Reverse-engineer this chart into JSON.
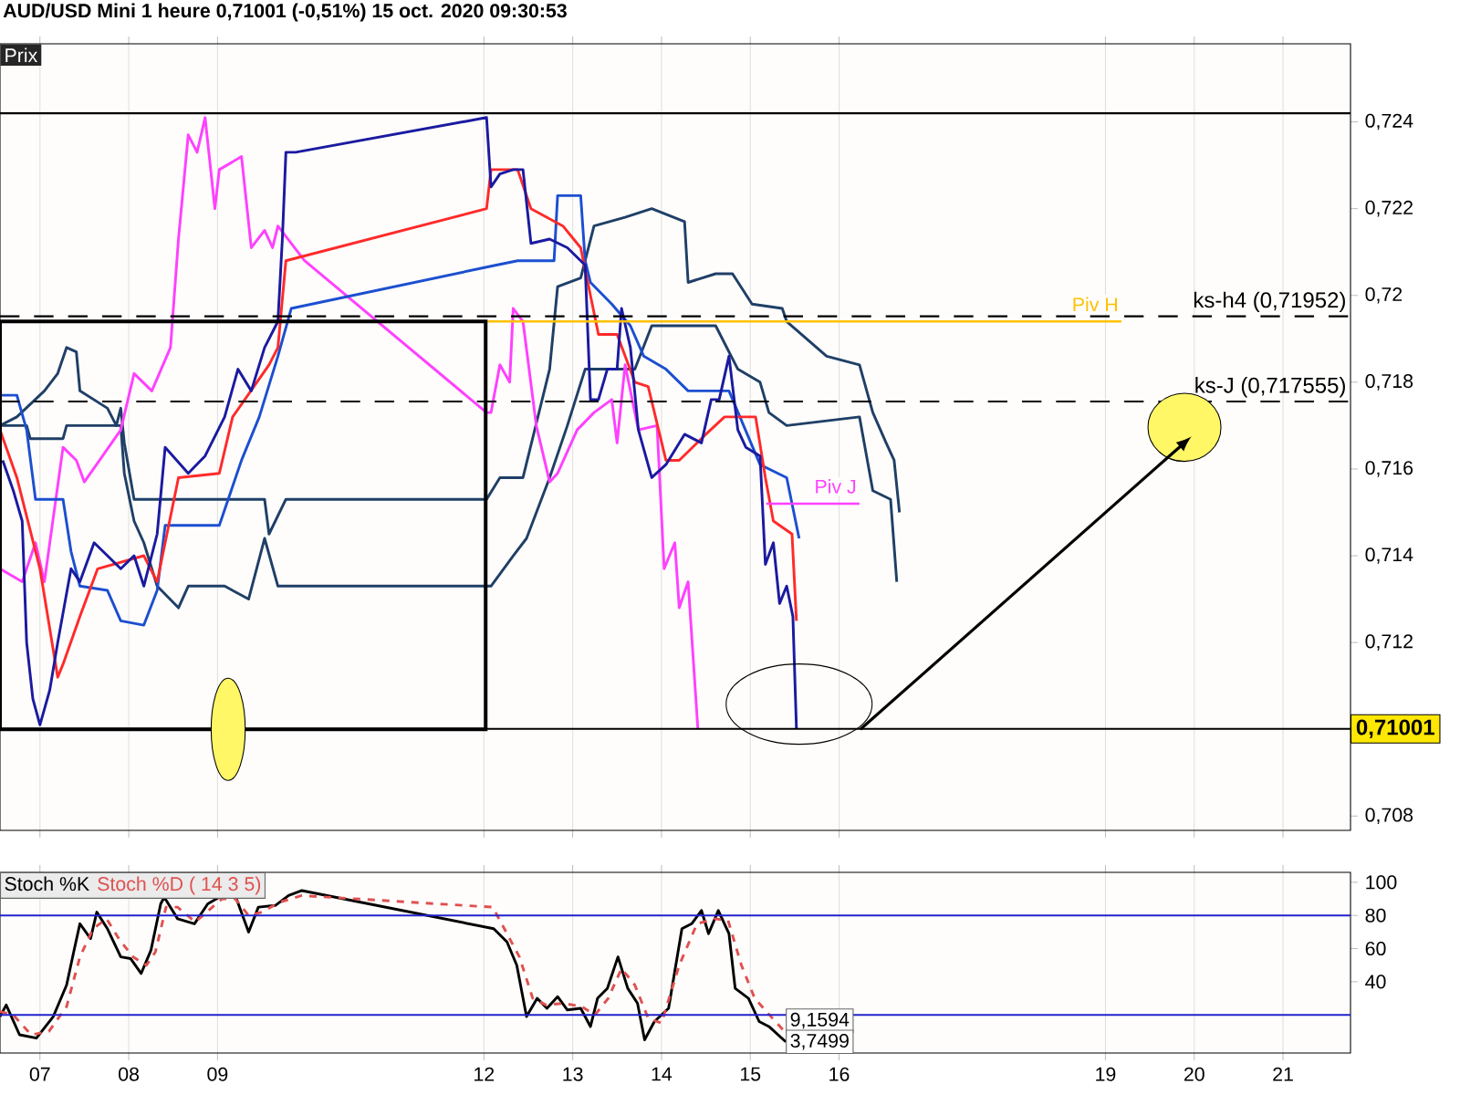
{
  "chart_data": [
    {
      "type": "line",
      "title": "AUD/USD Mini   1 heure   0,71001 (-0,51%)   15 oct. 2020 09:30:53",
      "annotations": [
        "Prix"
      ],
      "xlim": [
        6.55,
        21.76
      ],
      "xticks": [
        7,
        8,
        9,
        12,
        13,
        14,
        15,
        16,
        19,
        20,
        21
      ],
      "ylim": [
        0.70767,
        0.7258
      ],
      "yticks": [
        {
          "value": 0.708,
          "label": "0,708"
        },
        {
          "value": 0.71,
          "label": null
        },
        {
          "value": 0.712,
          "label": "0,712"
        },
        {
          "value": 0.714,
          "label": "0,714"
        },
        {
          "value": 0.716,
          "label": "0,716"
        },
        {
          "value": 0.718,
          "label": "0,718"
        },
        {
          "value": 0.72,
          "label": "0,72"
        },
        {
          "value": 0.722,
          "label": "0,722"
        },
        {
          "value": 0.724,
          "label": "0,724"
        }
      ],
      "tick_labels": "y",
      "grid": "x",
      "marker": "none",
      "line_style": "solid",
      "series": [
        {
          "color": "#1f3f66",
          "x": [
            6.55,
            6.74,
            7.05,
            7.2,
            7.3,
            7.41,
            7.45,
            7.76,
            7.86,
            7.91,
            7.95,
            8.06,
            9.53,
            9.58,
            9.77,
            12.03,
            12.18,
            12.44,
            12.74,
            12.83,
            13.09,
            13.24,
            13.59,
            13.89,
            14.26,
            14.3,
            14.61,
            14.8,
            15.02,
            15.36,
            15.41,
            15.86,
            16.23,
            16.38,
            16.53,
            16.62,
            16.68
          ],
          "values": [
            0.717,
            0.7172,
            0.7178,
            0.7182,
            0.7188,
            0.7187,
            0.7178,
            0.7174,
            0.717,
            0.7174,
            0.7166,
            0.7153,
            0.7153,
            0.7145,
            0.7153,
            0.7153,
            0.7158,
            0.7158,
            0.7183,
            0.7202,
            0.7204,
            0.7216,
            0.7218,
            0.722,
            0.7217,
            0.7203,
            0.7205,
            0.7205,
            0.7198,
            0.7197,
            0.7194,
            0.7186,
            0.7184,
            0.7173,
            0.7166,
            0.7162,
            0.715
          ]
        },
        {
          "color": "#1f3f66",
          "x": [
            6.55,
            6.85,
            6.89,
            7.26,
            7.3,
            7.91,
            7.95,
            8.06,
            8.17,
            8.32,
            8.56,
            8.67,
            9.08,
            9.35,
            9.53,
            9.68,
            12.08,
            12.33,
            12.48,
            12.74,
            12.94,
            13.14,
            13.7,
            13.89,
            14.61,
            14.86,
            15.11,
            15.21,
            15.41,
            16.23,
            16.38,
            16.58,
            16.65
          ],
          "values": [
            0.717,
            0.717,
            0.7167,
            0.7167,
            0.717,
            0.717,
            0.7159,
            0.7148,
            0.7143,
            0.7133,
            0.7128,
            0.7133,
            0.7133,
            0.713,
            0.7144,
            0.7133,
            0.7133,
            0.714,
            0.7144,
            0.7158,
            0.717,
            0.7183,
            0.7183,
            0.7193,
            0.7193,
            0.7183,
            0.718,
            0.7173,
            0.717,
            0.7172,
            0.7155,
            0.7153,
            0.7134
          ]
        },
        {
          "color": "#ff40ff",
          "x": [
            6.55,
            6.8,
            6.95,
            7.05,
            7.26,
            7.41,
            7.5,
            7.91,
            8.06,
            8.26,
            8.47,
            8.56,
            8.67,
            8.77,
            8.86,
            8.97,
            9.02,
            9.27,
            9.38,
            9.53,
            9.62,
            9.68,
            9.98,
            12.03,
            12.08,
            12.18,
            12.29,
            12.33,
            12.44,
            12.59,
            12.74,
            12.83,
            13.05,
            13.24,
            13.44,
            13.5,
            13.59,
            13.74,
            13.95,
            14.03,
            14.15,
            14.2,
            14.3,
            14.41
          ],
          "values": [
            0.7137,
            0.7134,
            0.7143,
            0.7134,
            0.7165,
            0.7162,
            0.7157,
            0.7169,
            0.7182,
            0.7178,
            0.7188,
            0.7213,
            0.7237,
            0.7233,
            0.7241,
            0.722,
            0.7229,
            0.7232,
            0.7211,
            0.7215,
            0.7211,
            0.7216,
            0.7208,
            0.7173,
            0.7173,
            0.7184,
            0.718,
            0.7197,
            0.7194,
            0.717,
            0.7157,
            0.7159,
            0.7169,
            0.7173,
            0.7176,
            0.7166,
            0.7184,
            0.7169,
            0.717,
            0.7137,
            0.7143,
            0.7128,
            0.7134,
            0.71
          ]
        },
        {
          "color": "#1c4fd0",
          "x": [
            6.55,
            6.74,
            6.85,
            6.95,
            7.26,
            7.35,
            7.45,
            7.76,
            7.91,
            8.17,
            8.32,
            8.41,
            9.02,
            9.27,
            9.47,
            9.68,
            9.83,
            12.14,
            12.38,
            12.79,
            12.83,
            13.09,
            13.14,
            13.2,
            13.44,
            13.65,
            13.8,
            14.05,
            14.3,
            14.76,
            15.11,
            15.41,
            15.55
          ],
          "values": [
            0.7177,
            0.7177,
            0.7169,
            0.7153,
            0.7153,
            0.7141,
            0.7133,
            0.7132,
            0.7125,
            0.7124,
            0.7132,
            0.7147,
            0.7147,
            0.7162,
            0.7172,
            0.7186,
            0.7197,
            0.7207,
            0.7208,
            0.7208,
            0.7223,
            0.7223,
            0.7208,
            0.7203,
            0.7198,
            0.7193,
            0.7186,
            0.7183,
            0.7178,
            0.7178,
            0.7161,
            0.7158,
            0.7144
          ]
        },
        {
          "color": "#ff2a2a",
          "x": [
            6.55,
            6.74,
            7,
            7.2,
            7.26,
            7.45,
            7.65,
            8.17,
            8.32,
            8.56,
            9.02,
            9.17,
            9.58,
            9.68,
            9.77,
            12.03,
            12.08,
            12.38,
            12.53,
            12.89,
            13.09,
            13.2,
            13.29,
            13.5,
            13.7,
            13.85,
            14.05,
            14.2,
            14.5,
            14.71,
            15.06,
            15.17,
            15.26,
            15.47,
            15.52
          ],
          "values": [
            0.7169,
            0.7158,
            0.7137,
            0.7112,
            0.7115,
            0.7126,
            0.7137,
            0.714,
            0.7134,
            0.7158,
            0.7159,
            0.7172,
            0.7184,
            0.7188,
            0.7208,
            0.722,
            0.7229,
            0.7229,
            0.722,
            0.7216,
            0.7211,
            0.72,
            0.7191,
            0.7191,
            0.718,
            0.7179,
            0.7162,
            0.7162,
            0.7168,
            0.7172,
            0.7172,
            0.7158,
            0.7148,
            0.7145,
            0.7125
          ]
        },
        {
          "color": "#1a1aa0",
          "x": [
            6.58,
            6.7,
            6.8,
            6.85,
            6.92,
            7,
            7.11,
            7.2,
            7.35,
            7.45,
            7.61,
            7.76,
            7.91,
            8.06,
            8.17,
            8.32,
            8.41,
            8.67,
            8.86,
            9.08,
            9.23,
            9.38,
            9.53,
            9.68,
            9.73,
            9.77,
            9.88,
            12.03,
            12.08,
            12.18,
            12.33,
            12.44,
            12.53,
            12.74,
            12.94,
            13.14,
            13.2,
            13.29,
            13.39,
            13.5,
            13.55,
            13.65,
            13.74,
            13.89,
            14.05,
            14.26,
            14.45,
            14.56,
            14.65,
            14.76,
            14.86,
            14.95,
            15.11,
            15.17,
            15.26,
            15.33,
            15.41,
            15.48,
            15.52
          ],
          "values": [
            0.7162,
            0.7155,
            0.7148,
            0.712,
            0.7107,
            0.7101,
            0.7109,
            0.712,
            0.7137,
            0.7134,
            0.7143,
            0.714,
            0.7137,
            0.714,
            0.7133,
            0.7145,
            0.7165,
            0.7159,
            0.7163,
            0.7172,
            0.7183,
            0.7178,
            0.7188,
            0.7194,
            0.7213,
            0.7233,
            0.7233,
            0.7241,
            0.7225,
            0.7228,
            0.7229,
            0.7229,
            0.7212,
            0.7213,
            0.7211,
            0.7207,
            0.7176,
            0.7176,
            0.7183,
            0.7183,
            0.7197,
            0.7188,
            0.7169,
            0.7158,
            0.7161,
            0.7168,
            0.7166,
            0.7176,
            0.7176,
            0.7186,
            0.7169,
            0.7165,
            0.7163,
            0.7138,
            0.7143,
            0.7129,
            0.7133,
            0.7126,
            0.71001
          ]
        },
        {
          "name": "Piv H",
          "color": "#ffc000",
          "x": [
            12.03,
            19.18
          ],
          "values": [
            0.7194,
            0.7194
          ]
        },
        {
          "name": "Piv J",
          "color": "#ff40ff",
          "x": [
            15.18,
            16.23
          ],
          "values": [
            0.7152,
            0.7152
          ]
        }
      ],
      "ref_lines": [
        {
          "axis": "y",
          "value": 0.7242,
          "color": "#000000"
        },
        {
          "axis": "y",
          "value": 0.71952,
          "label": "ks-h4 (0,71952)",
          "line_style": "dashed",
          "color": "#000000"
        },
        {
          "axis": "y",
          "value": 0.717555,
          "label": "ks-J (0,717555)",
          "line_style": "dashed",
          "color": "#000000"
        },
        {
          "axis": "y",
          "value": 0.71001,
          "label": "0,71001",
          "color": "#000000"
        }
      ]
    },
    {
      "type": "line",
      "xlim": [
        6.55,
        21.76
      ],
      "xticks": [
        {
          "value": 7,
          "label": "07"
        },
        {
          "value": 8,
          "label": "08"
        },
        {
          "value": 9,
          "label": "09"
        },
        12,
        13,
        14,
        15,
        16,
        19,
        20,
        21
      ],
      "ylim": [
        -3,
        106
      ],
      "yticks": [
        40,
        60,
        80,
        100
      ],
      "grid": "x",
      "marker": "none",
      "series": [
        {
          "name": "Stoch %K",
          "color": "#000000",
          "line_style": "solid",
          "x": [
            6.55,
            6.62,
            6.77,
            6.96,
            7.15,
            7.3,
            7.38,
            7.45,
            7.57,
            7.64,
            7.76,
            7.91,
            8.02,
            8.14,
            8.25,
            8.36,
            8.4,
            8.55,
            8.74,
            8.89,
            9.05,
            9.2,
            9.35,
            9.46,
            9.65,
            9.8,
            9.95,
            12.11,
            12.26,
            12.37,
            12.48,
            12.6,
            12.71,
            12.83,
            12.94,
            13.09,
            13.2,
            13.28,
            13.39,
            13.51,
            13.62,
            13.73,
            13.81,
            13.92,
            14.08,
            14.23,
            14.34,
            14.45,
            14.53,
            14.64,
            14.76,
            14.83,
            14.98,
            15.1,
            15.21,
            15.4
          ],
          "values": [
            19,
            26,
            8,
            6,
            19,
            38,
            58,
            75,
            66,
            82,
            72,
            55,
            54,
            45,
            59,
            87,
            91,
            78,
            75,
            87,
            92,
            92,
            70,
            85,
            86,
            92,
            95,
            72,
            64,
            50,
            19,
            30,
            24,
            31,
            23,
            24,
            13,
            30,
            36,
            55,
            36,
            27,
            5,
            16,
            24,
            72,
            75,
            83,
            69,
            83,
            69,
            36,
            30,
            16,
            13,
            3.7499
          ]
        },
        {
          "name": "Stoch %D ( 14 3 5)",
          "color": "#e05050",
          "line_style": "dashed",
          "x": [
            6.55,
            6.7,
            6.9,
            7.1,
            7.3,
            7.45,
            7.6,
            7.75,
            7.9,
            8.05,
            8.2,
            8.3,
            8.42,
            8.55,
            8.75,
            8.9,
            9.05,
            9.2,
            9.35,
            9.5,
            9.7,
            9.95,
            12.1,
            12.25,
            12.4,
            12.55,
            12.7,
            12.9,
            13.1,
            13.25,
            13.4,
            13.55,
            13.7,
            13.85,
            14.0,
            14.2,
            14.4,
            14.6,
            14.75,
            14.9,
            15.05,
            15.25,
            15.4
          ],
          "values": [
            22,
            20,
            8,
            10,
            25,
            55,
            72,
            78,
            65,
            55,
            50,
            58,
            85,
            85,
            76,
            83,
            90,
            90,
            80,
            82,
            88,
            92,
            85,
            70,
            55,
            30,
            26,
            27,
            25,
            20,
            30,
            48,
            38,
            18,
            15,
            50,
            75,
            78,
            77,
            50,
            30,
            18,
            9.1594
          ]
        }
      ],
      "ref_lines": [
        {
          "axis": "y",
          "value": 80,
          "color": "#2222cc"
        },
        {
          "axis": "y",
          "value": 20,
          "color": "#2222cc"
        }
      ],
      "annotations": [
        {
          "text": "9,1594",
          "x": 15.4,
          "y": 9.1594
        },
        {
          "text": "3,7499",
          "x": 15.4,
          "y": 3.7499
        }
      ]
    }
  ]
}
